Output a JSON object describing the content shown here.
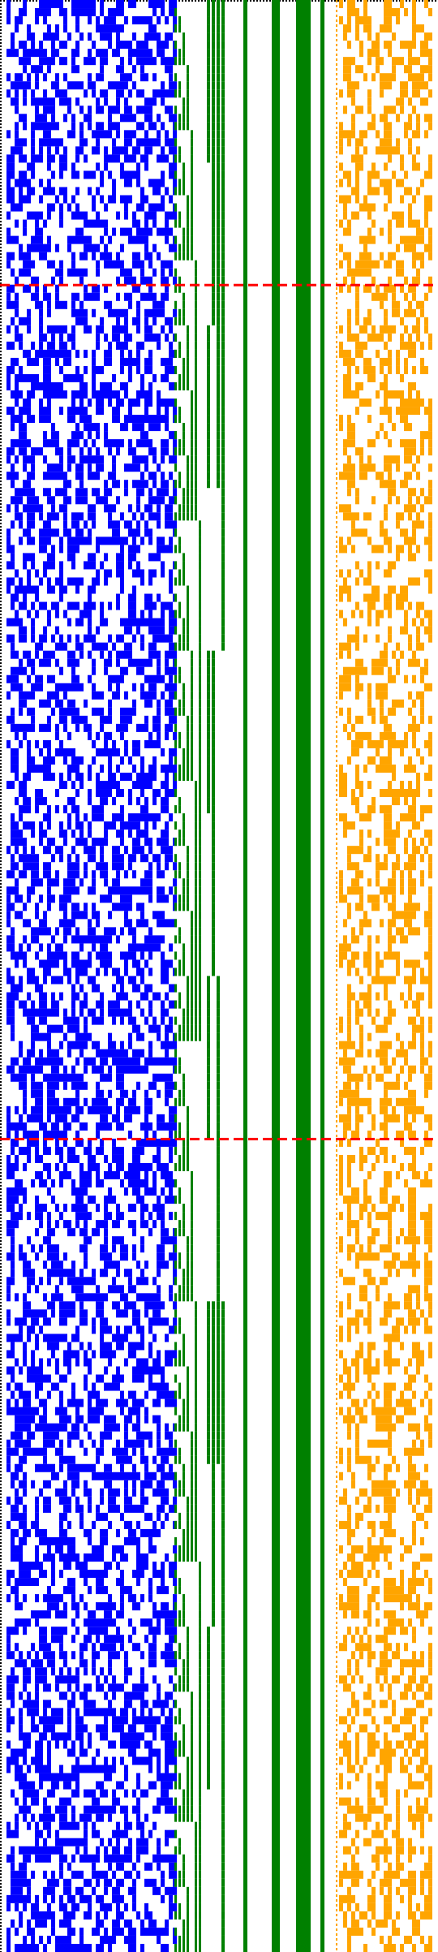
{
  "colors": {
    "background": "#ffffff",
    "blue_bits": "#0000ff",
    "green_counter": "#008000",
    "orange_bits": "#ffa500",
    "red_marker": "#ff0000",
    "dot_border": "#000000"
  },
  "grid": {
    "rows": 240,
    "blue_fill_fraction": 0.5,
    "orange_fill_fraction": 0.35
  },
  "counter_bands": {
    "description_free_counter_columns": 20,
    "solid_high_bit_columns": 6
  },
  "markers": {
    "red_dashed_rows": [
      35,
      140
    ]
  }
}
